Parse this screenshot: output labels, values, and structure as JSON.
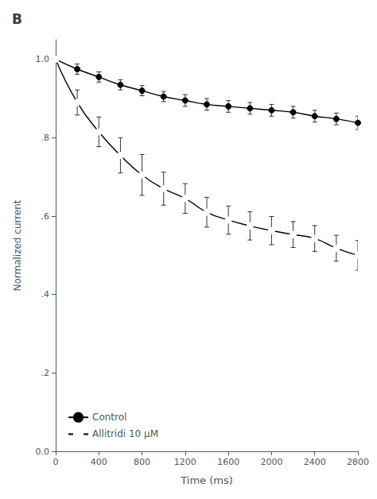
{
  "chart_data": {
    "type": "line",
    "title": "B",
    "xlabel": "Time (ms)",
    "ylabel": "Normalized current",
    "xlim": [
      0,
      2800
    ],
    "xticks": [
      0,
      400,
      800,
      1200,
      1600,
      2000,
      2400,
      2800
    ],
    "ylim": [
      0,
      1.05
    ],
    "yticks": [
      {
        "value": 0.0,
        "label": "0.0"
      },
      {
        "value": 0.2,
        "label": ".2"
      },
      {
        "value": 0.4,
        "label": ".4"
      },
      {
        "value": 0.6,
        "label": ".6"
      },
      {
        "value": 0.8,
        "label": ".8"
      },
      {
        "value": 1.0,
        "label": "1.0"
      }
    ],
    "grid": false,
    "legend": "lower left",
    "series": [
      {
        "name": "Control",
        "color": "#000000",
        "marker": "circle",
        "line_style": "solid",
        "x": [
          0,
          200,
          400,
          600,
          800,
          1000,
          1200,
          1400,
          1600,
          1800,
          2000,
          2200,
          2400,
          2600,
          2800
        ],
        "values": [
          1.0,
          0.975,
          0.955,
          0.935,
          0.92,
          0.905,
          0.895,
          0.885,
          0.88,
          0.875,
          0.87,
          0.865,
          0.855,
          0.848,
          0.838
        ],
        "err": [
          0.0,
          0.013,
          0.013,
          0.013,
          0.013,
          0.013,
          0.015,
          0.015,
          0.015,
          0.015,
          0.015,
          0.015,
          0.015,
          0.015,
          0.017
        ]
      },
      {
        "name": "Allitridi 10 μM",
        "color": "#000000",
        "marker": "ring",
        "line_style": "solid",
        "x": [
          0,
          200,
          400,
          600,
          800,
          1000,
          1200,
          1400,
          1600,
          1800,
          2000,
          2200,
          2400,
          2600,
          2800
        ],
        "values": [
          1.0,
          0.89,
          0.815,
          0.755,
          0.705,
          0.67,
          0.645,
          0.61,
          0.59,
          0.575,
          0.563,
          0.553,
          0.543,
          0.518,
          0.5
        ],
        "err": [
          0.0,
          0.032,
          0.038,
          0.045,
          0.052,
          0.042,
          0.038,
          0.038,
          0.036,
          0.036,
          0.036,
          0.033,
          0.033,
          0.033,
          0.038
        ]
      }
    ]
  }
}
